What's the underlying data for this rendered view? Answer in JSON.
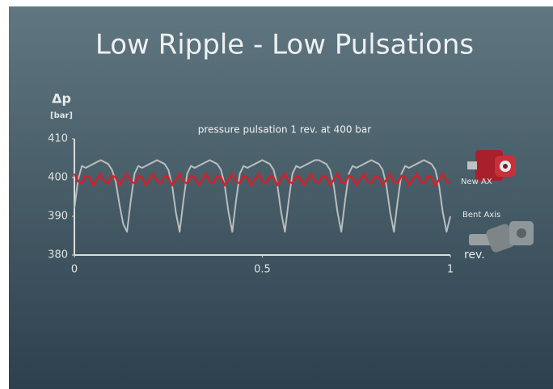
{
  "chart_data": {
    "type": "line",
    "title": "Low Ripple - Low Pulsations",
    "subtitle": "pressure pulsation 1 rev. at 400 bar",
    "y_label": "Δp",
    "y_unit": "[bar]",
    "x_label": "rev.",
    "xlim": [
      0,
      1
    ],
    "xticks": [
      0,
      0.5,
      1
    ],
    "ylim": [
      380,
      410
    ],
    "yticks": [
      380,
      390,
      400,
      410
    ],
    "x": [
      0,
      0.01,
      0.02,
      0.03,
      0.04,
      0.05,
      0.06,
      0.07,
      0.08,
      0.09,
      0.1,
      0.11,
      0.12,
      0.13,
      0.14,
      0.15,
      0.16,
      0.17,
      0.18,
      0.19,
      0.2,
      0.21,
      0.22,
      0.23,
      0.24,
      0.25,
      0.26,
      0.27,
      0.28,
      0.29,
      0.3,
      0.31,
      0.32,
      0.33,
      0.34,
      0.35,
      0.36,
      0.37,
      0.38,
      0.39,
      0.4,
      0.41,
      0.42,
      0.43,
      0.44,
      0.45,
      0.46,
      0.47,
      0.48,
      0.49,
      0.5,
      0.51,
      0.52,
      0.53,
      0.54,
      0.55,
      0.56,
      0.57,
      0.58,
      0.59,
      0.6,
      0.61,
      0.62,
      0.63,
      0.64,
      0.65,
      0.66,
      0.67,
      0.68,
      0.69,
      0.7,
      0.71,
      0.72,
      0.73,
      0.74,
      0.75,
      0.76,
      0.77,
      0.78,
      0.79,
      0.8,
      0.81,
      0.82,
      0.83,
      0.84,
      0.85,
      0.86,
      0.87,
      0.88,
      0.89,
      0.9,
      0.91,
      0.92,
      0.93,
      0.94,
      0.95,
      0.96,
      0.97,
      0.98,
      0.99,
      1
    ],
    "series": [
      {
        "name": "Bent Axis",
        "color": "#b9bdbd",
        "values": [
          392,
          399.5,
          403,
          402.5,
          403,
          403.5,
          404,
          404.5,
          404,
          403.5,
          402,
          399,
          393,
          388,
          386,
          394,
          401,
          403,
          402.5,
          403,
          403.5,
          404,
          404.5,
          404,
          403.5,
          402,
          398,
          391,
          386,
          394,
          401,
          403,
          402.5,
          403,
          403.5,
          404,
          404.5,
          404,
          403.5,
          402,
          398,
          391,
          386,
          394,
          401,
          403,
          402.5,
          403,
          403.5,
          404,
          404.5,
          404,
          403.5,
          402,
          398,
          391,
          386,
          394,
          401,
          403,
          402.5,
          403,
          403.5,
          404,
          404.5,
          404.5,
          404,
          403.5,
          402,
          398,
          391,
          386,
          394,
          401,
          403,
          402.5,
          403,
          403.5,
          404,
          404.5,
          404,
          403.5,
          402,
          398,
          391,
          386,
          394,
          401,
          403,
          402.5,
          403,
          403.5,
          404,
          404.5,
          404,
          403.5,
          402,
          398,
          391,
          386,
          390
        ]
      },
      {
        "name": "New AX",
        "color": "#d4202a",
        "values": [
          401,
          399,
          398.5,
          400.5,
          400,
          398,
          399.5,
          401,
          399,
          398.5,
          400.5,
          400,
          398,
          399.5,
          401,
          399,
          398.5,
          400.5,
          400,
          398,
          399.5,
          401,
          399,
          398.5,
          400.5,
          400,
          398,
          399.5,
          401,
          399,
          398.5,
          400.5,
          400,
          398,
          399.5,
          401,
          399,
          398.5,
          400.5,
          400,
          398,
          399.5,
          401,
          399,
          398.5,
          400.5,
          400,
          398,
          399.5,
          401,
          399,
          398.5,
          400.5,
          400,
          398,
          399.5,
          401,
          399,
          398.5,
          400.5,
          400,
          398,
          399.5,
          401,
          399,
          398.5,
          400.5,
          400,
          398,
          399.5,
          401,
          399,
          398.5,
          400.5,
          400,
          398,
          399.5,
          401,
          399,
          398.5,
          400.5,
          400,
          398,
          399.5,
          401,
          399,
          398.5,
          400.5,
          400,
          398,
          399.5,
          401,
          399,
          398.5,
          400.5,
          400,
          398,
          399.5,
          401,
          399,
          398.5
        ]
      }
    ]
  }
}
